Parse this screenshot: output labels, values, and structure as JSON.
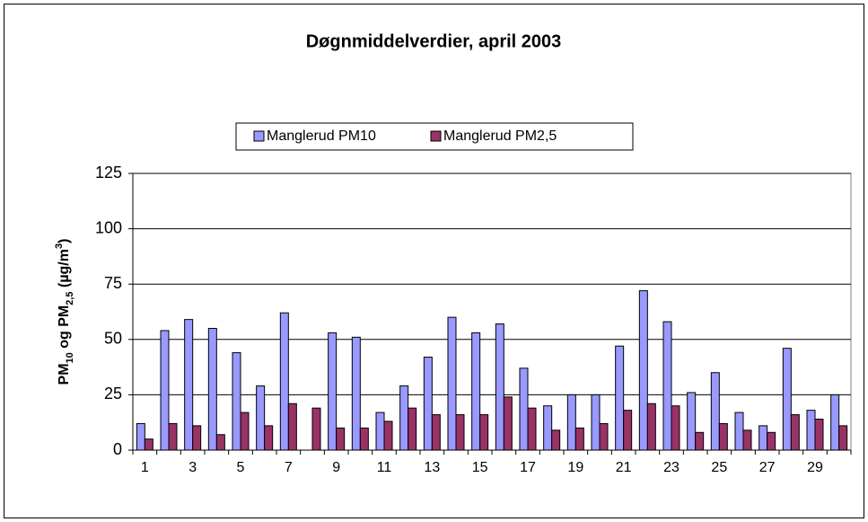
{
  "chart_data": {
    "type": "bar",
    "title": "Døgnmiddelverdier, april 2003",
    "y_label": [
      "PM",
      "10",
      " og PM",
      "2,5",
      " (µg/m",
      "3",
      ")"
    ],
    "categories": [
      "1",
      null,
      "3",
      null,
      "5",
      null,
      "7",
      null,
      "9",
      null,
      "11",
      null,
      "13",
      null,
      "15",
      null,
      "17",
      null,
      "19",
      null,
      "21",
      null,
      "23",
      null,
      "25",
      null,
      "27",
      null,
      "29",
      null
    ],
    "series": [
      {
        "name": "Manglerud PM10",
        "color": "#9999ff",
        "values": [
          12,
          54,
          59,
          55,
          44,
          29,
          62,
          null,
          53,
          51,
          17,
          29,
          42,
          60,
          53,
          57,
          37,
          20,
          25,
          25,
          47,
          72,
          58,
          26,
          35,
          17,
          11,
          46,
          18,
          25
        ]
      },
      {
        "name": "Manglerud PM2,5",
        "color": "#993366",
        "values": [
          5,
          12,
          11,
          7,
          17,
          11,
          21,
          19,
          10,
          10,
          13,
          19,
          16,
          16,
          16,
          24,
          19,
          9,
          10,
          12,
          18,
          21,
          20,
          8,
          12,
          9,
          8,
          16,
          14,
          11
        ]
      }
    ],
    "ylim": [
      0,
      125
    ],
    "yticks": [
      0,
      25,
      50,
      75,
      100,
      125
    ],
    "grid": true,
    "legend": "top"
  }
}
